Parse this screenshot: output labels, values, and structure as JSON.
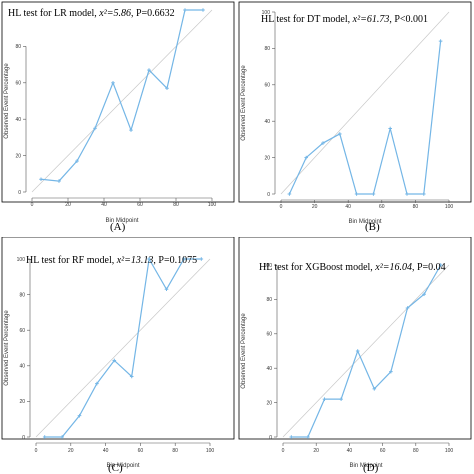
{
  "colors": {
    "series": "#74b6e6",
    "diagonal": "#c8c8c8",
    "frame": "#000000"
  },
  "chart_data": [
    {
      "type": "line",
      "title_prefix": "HL test for LR model, ",
      "stat": "x²=5.86",
      "title_suffix": ", P=0.6632",
      "caption": "(A)",
      "xlabel": "Bin Midpoint",
      "ylabel": "Observed Event Percentage",
      "xlim": [
        0,
        100
      ],
      "ylim": [
        0,
        100
      ],
      "xticks": [
        0,
        20,
        40,
        60,
        80,
        100
      ],
      "yticks": [
        0,
        20,
        40,
        60,
        80
      ],
      "x": [
        5,
        15,
        25,
        35,
        45,
        55,
        65,
        75,
        85,
        95
      ],
      "y": [
        7,
        6,
        17,
        35,
        60,
        34,
        67,
        57,
        100,
        100
      ]
    },
    {
      "type": "line",
      "title_prefix": "HL test for DT model, ",
      "stat": "x²=61.73",
      "title_suffix": ", P<0.001",
      "caption": "(B)",
      "xlabel": "Bin Midpoint",
      "ylabel": "Observed Event Percentage",
      "xlim": [
        0,
        100
      ],
      "ylim": [
        0,
        100
      ],
      "xticks": [
        0,
        20,
        40,
        60,
        80,
        100
      ],
      "yticks": [
        0,
        20,
        40,
        60,
        80,
        100
      ],
      "x": [
        5,
        15,
        25,
        35,
        45,
        55,
        65,
        75,
        85,
        95
      ],
      "y": [
        0,
        20,
        28,
        33,
        0,
        0,
        36,
        0,
        0,
        84
      ]
    },
    {
      "type": "line",
      "title_prefix": "HL test for RF model, ",
      "stat": "x²=13.13",
      "title_suffix": ", P=0.1075",
      "caption": "(C)",
      "xlabel": "Bin Midpoint",
      "ylabel": "Observed Event Percentage",
      "xlim": [
        0,
        100
      ],
      "ylim": [
        0,
        100
      ],
      "xticks": [
        0,
        20,
        40,
        60,
        80,
        100
      ],
      "yticks": [
        0,
        20,
        40,
        60,
        80,
        100
      ],
      "x": [
        5,
        15,
        25,
        35,
        45,
        55,
        65,
        75,
        85,
        95
      ],
      "y": [
        0,
        0,
        12,
        30,
        43,
        34,
        100,
        83,
        100,
        100
      ]
    },
    {
      "type": "line",
      "title_prefix": "HL test for XGBoost model, ",
      "stat": "x²=16.04",
      "title_suffix": ", P=0.04",
      "caption": "(D)",
      "xlabel": "Bin Midpoint",
      "ylabel": "Observed Event Percentage",
      "xlim": [
        0,
        100
      ],
      "ylim": [
        0,
        100
      ],
      "xticks": [
        0,
        20,
        40,
        60,
        80,
        100
      ],
      "yticks": [
        0,
        20,
        40,
        60,
        80,
        100
      ],
      "x": [
        5,
        15,
        25,
        35,
        45,
        55,
        65,
        75,
        85,
        95
      ],
      "y": [
        0,
        0,
        22,
        22,
        50,
        28,
        38,
        75,
        83,
        100
      ]
    }
  ]
}
